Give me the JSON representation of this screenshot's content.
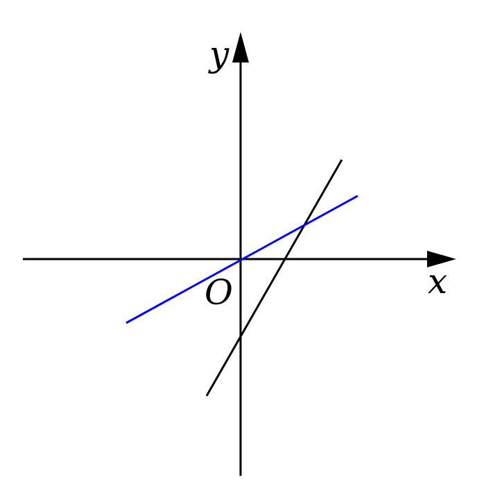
{
  "axes": {
    "x_label": "x",
    "y_label": "y",
    "origin_label": "O"
  },
  "lines": [
    {
      "slope": 2,
      "intercept": -1,
      "color": "#000000"
    },
    {
      "slope": 0.5,
      "intercept": 0,
      "color": "#0000ff"
    }
  ],
  "colors": {
    "axes": "#000000",
    "background": "#ffffff"
  }
}
